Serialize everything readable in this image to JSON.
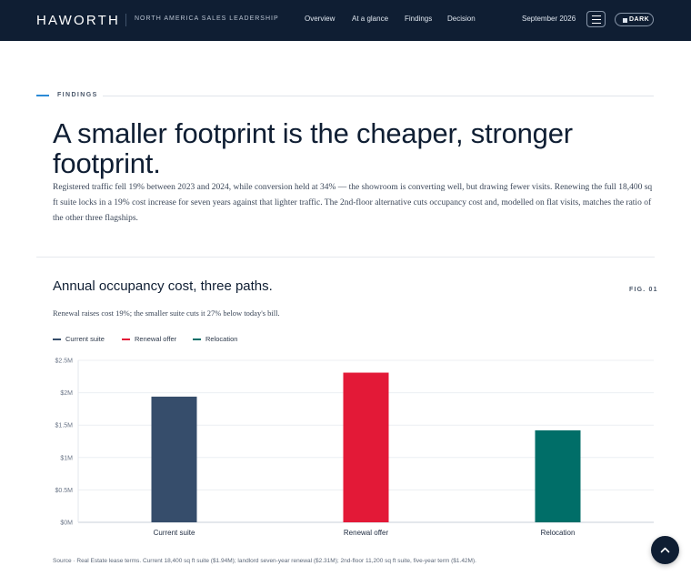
{
  "header": {
    "logo": "HAWORTH",
    "subtitle": "NORTH AMERICA SALES LEADERSHIP",
    "nav": [
      "Overview",
      "At a glance",
      "Findings",
      "Decision"
    ],
    "date": "September 2026",
    "menu_icon": "hamburger-icon",
    "theme_toggle_label": "DARK"
  },
  "findings": {
    "kicker": "FINDINGS",
    "title": "A smaller footprint is the cheaper, stronger footprint.",
    "lede": "Registered traffic fell 19% between 2023 and 2024, while conversion held at 34% — the showroom is converting well, but drawing fewer visits. Renewing the full 18,400 sq ft suite locks in a 19% cost increase for seven years against that lighter traffic. The 2nd-floor alternative cuts occupancy cost and, modelled on flat visits, matches the ratio of the other three flagships."
  },
  "figure": {
    "title": "Annual occupancy cost, three paths.",
    "number": "FIG. 01",
    "subtitle": "Renewal raises cost 19%; the smaller suite cuts it 27% below today's bill.",
    "source": "Source · Real Estate lease terms. Current 18,400 sq ft suite ($1.94M); landlord seven-year renewal ($2.31M); 2nd-floor 11,200 sq ft suite, five-year term ($1.42M)."
  },
  "chart_data": {
    "type": "bar",
    "categories": [
      "Current suite",
      "Renewal offer",
      "Relocation"
    ],
    "values": [
      1.94,
      2.31,
      1.42
    ],
    "colors": [
      "#364d6b",
      "#e31937",
      "#006e68"
    ],
    "ylim": [
      0,
      2.5
    ],
    "yticks": [
      0,
      0.5,
      1,
      1.5,
      2,
      2.5
    ],
    "ytick_labels": [
      "$0M",
      "$0.5M",
      "$1M",
      "$1.5M",
      "$2M",
      "$2.5M"
    ],
    "grid": true,
    "legend": [
      {
        "name": "Current suite",
        "color": "#364d6b"
      },
      {
        "name": "Renewal offer",
        "color": "#e31937"
      },
      {
        "name": "Relocation",
        "color": "#006e68"
      }
    ],
    "legend_position": "top-left"
  },
  "fab": {
    "icon": "chevron-up-icon"
  }
}
